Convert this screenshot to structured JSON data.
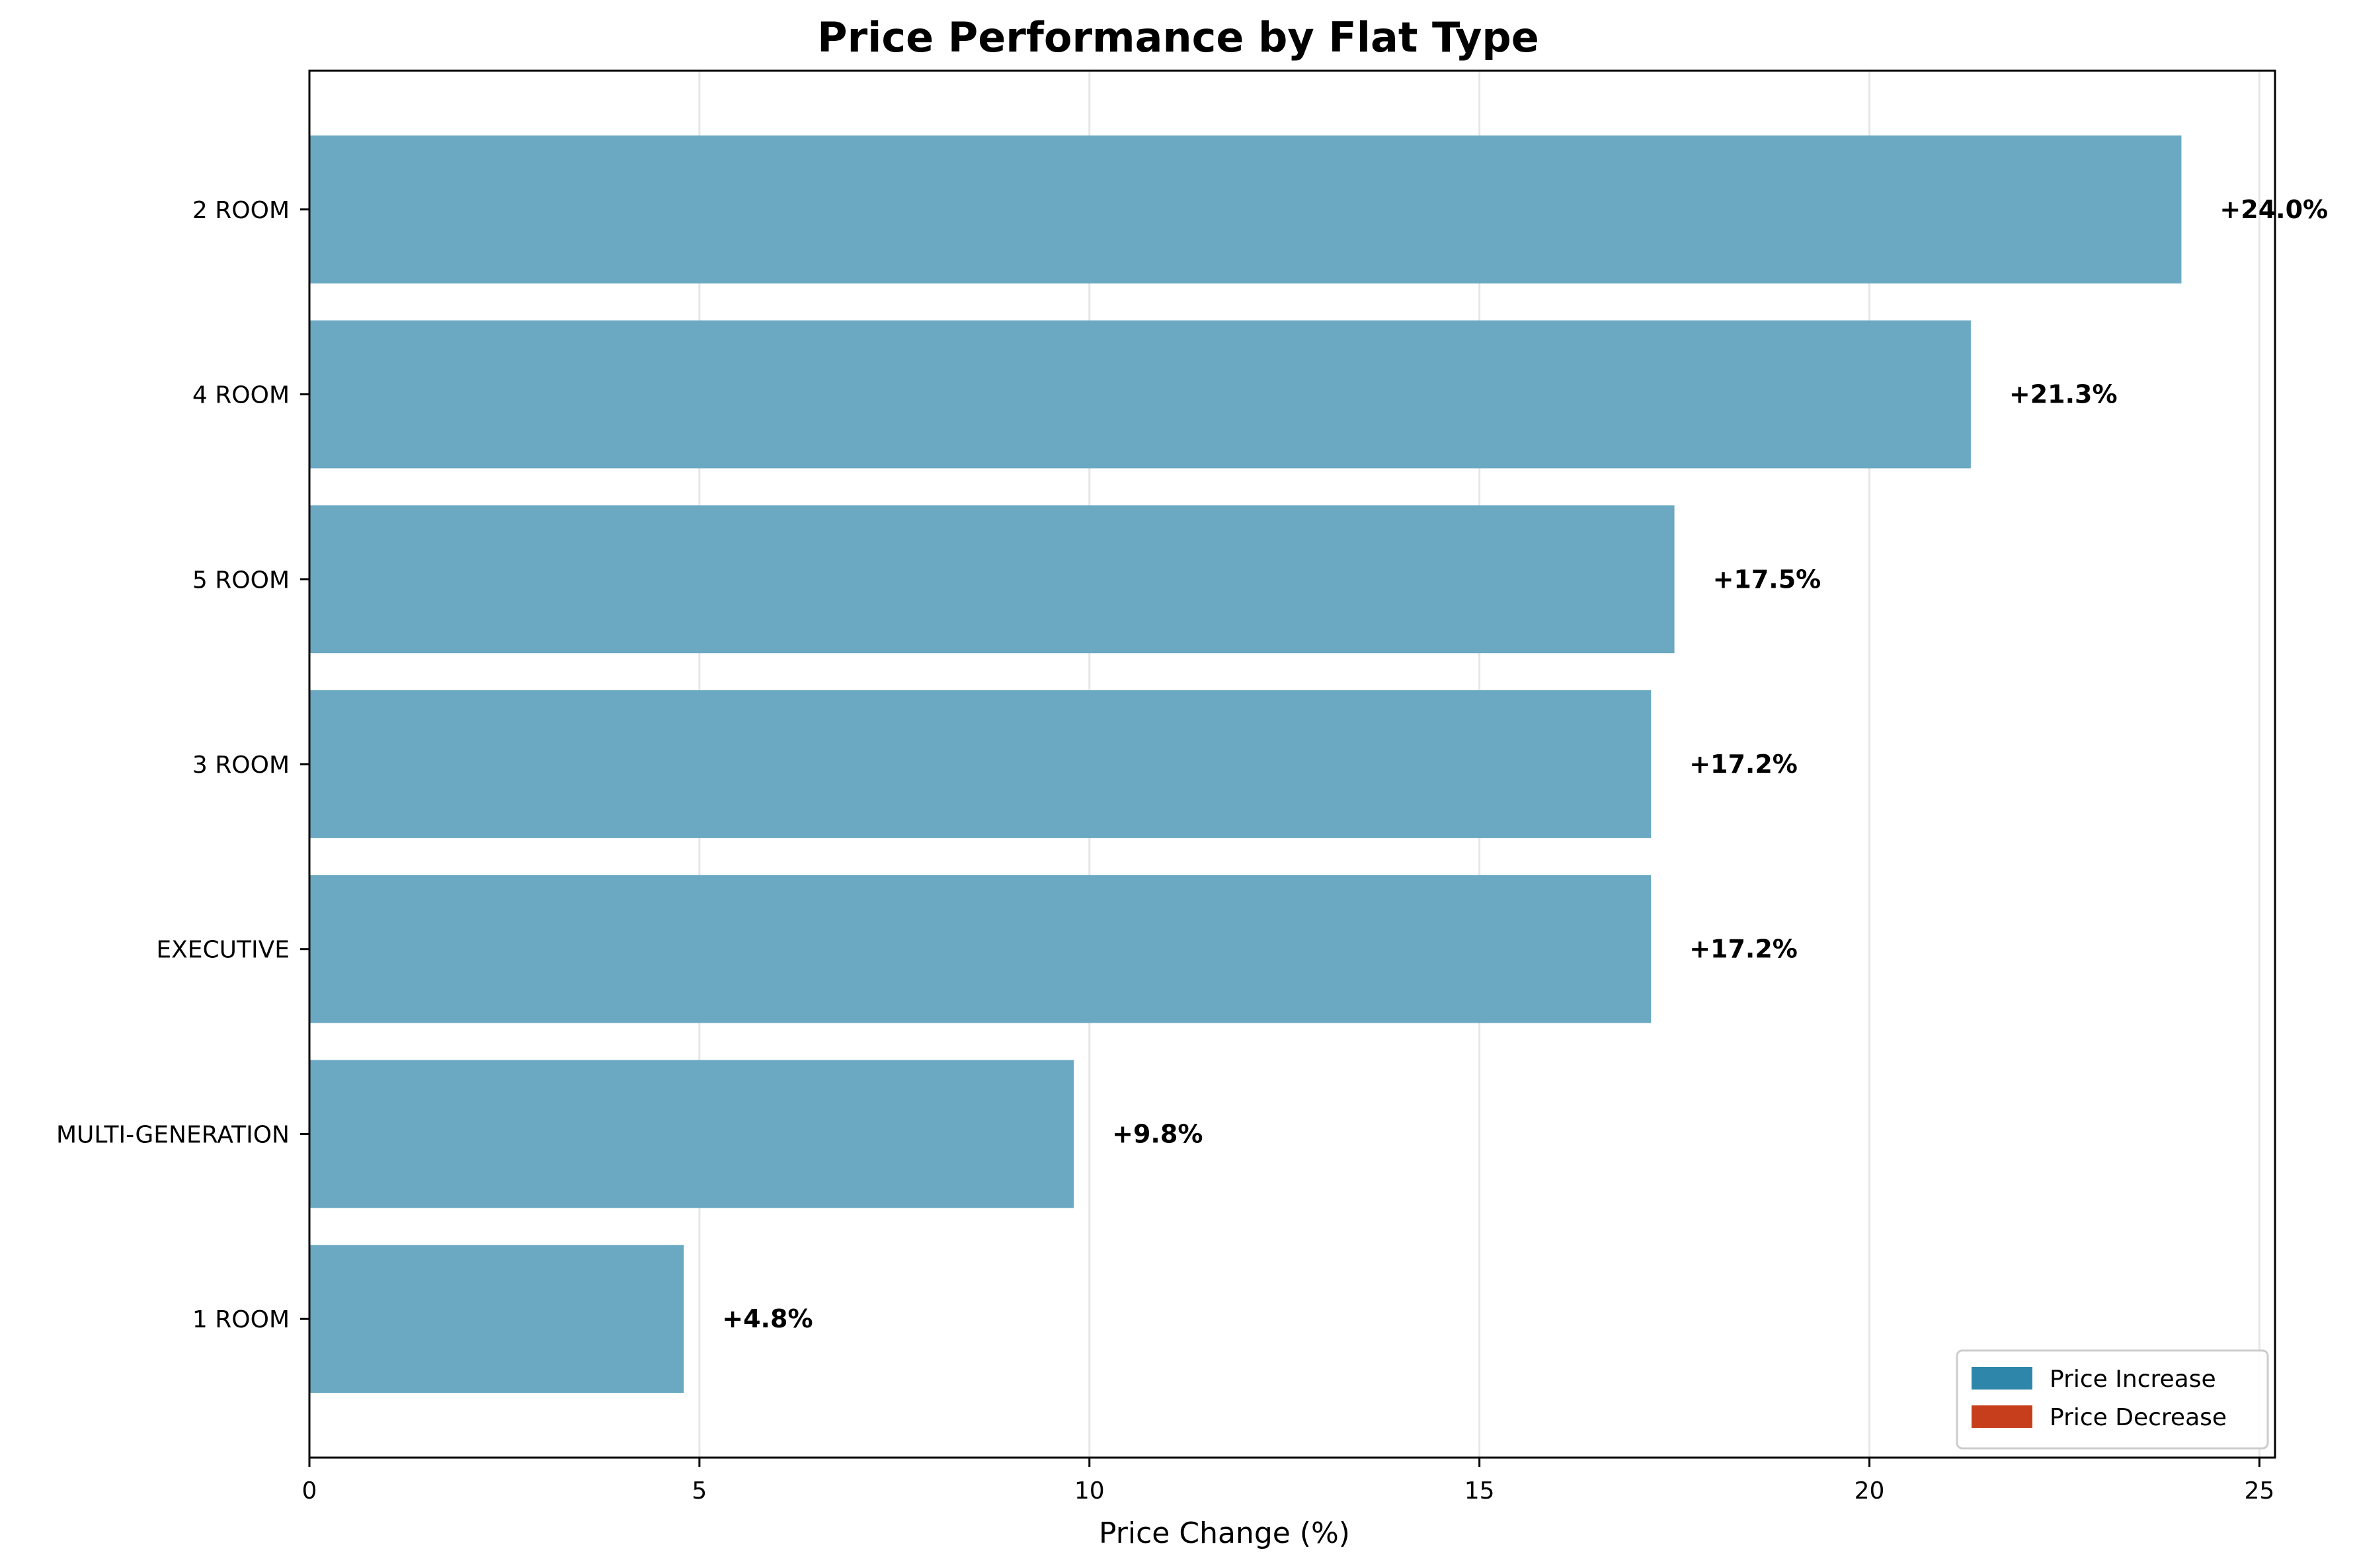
{
  "chart_data": {
    "type": "bar",
    "orientation": "horizontal",
    "title": "Price Performance by Flat Type",
    "xlabel": "Price Change (%)",
    "ylabel": "",
    "xlim": [
      0,
      25.2
    ],
    "xticks": [
      0,
      5,
      10,
      15,
      20,
      25
    ],
    "grid": "vertical",
    "legend_position": "bottom-right",
    "categories": [
      "2 ROOM",
      "4 ROOM",
      "5 ROOM",
      "3 ROOM",
      "EXECUTIVE",
      "MULTI-GENERATION",
      "1 ROOM"
    ],
    "values": [
      24.0,
      21.3,
      17.5,
      17.2,
      17.2,
      9.8,
      4.8
    ],
    "data_labels": [
      "+24.0%",
      "+21.3%",
      "+17.5%",
      "+17.2%",
      "+17.2%",
      "+9.8%",
      "+4.8%"
    ],
    "legend": [
      {
        "label": "Price Increase",
        "color": "#2e86ab"
      },
      {
        "label": "Price Decrease",
        "color": "#c73e1d"
      }
    ],
    "bar_color": "#6ba9c3"
  }
}
